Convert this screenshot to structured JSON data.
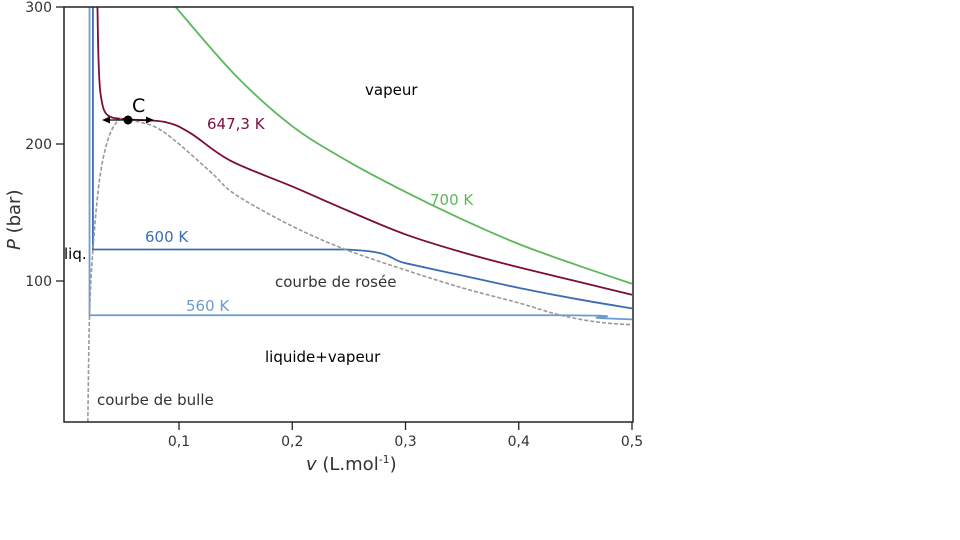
{
  "chart_data": {
    "type": "line",
    "title": "",
    "xlabel": "v (L.mol-1)",
    "xlabel_var": "v",
    "xlabel_unit": " (L.mol",
    "xlabel_exp": "-1",
    "xlabel_close": ")",
    "ylabel_var": "P",
    "ylabel_unit": " (bar)",
    "xlim": [
      -0.002,
      0.5
    ],
    "ylim": [
      -3,
      300
    ],
    "grid": false,
    "x_ticks": [
      {
        "v": 0.1,
        "label": "0,1"
      },
      {
        "v": 0.2,
        "label": "0,2"
      },
      {
        "v": 0.3,
        "label": "0,3"
      },
      {
        "v": 0.4,
        "label": "0,4"
      },
      {
        "v": 0.5,
        "label": "0,5"
      }
    ],
    "y_ticks": [
      {
        "v": 100,
        "label": "100"
      },
      {
        "v": 200,
        "label": "200"
      },
      {
        "v": 300,
        "label": "300"
      }
    ],
    "series": [
      {
        "name": "700 K",
        "color": "#5cb85c",
        "dashed": false,
        "points": [
          [
            0.097,
            300
          ],
          [
            0.15,
            250
          ],
          [
            0.2,
            213
          ],
          [
            0.25,
            187
          ],
          [
            0.3,
            165
          ],
          [
            0.35,
            145
          ],
          [
            0.4,
            127
          ],
          [
            0.45,
            112
          ],
          [
            0.5,
            98
          ]
        ]
      },
      {
        "name": "647,3 K",
        "color": "#7b0d3e",
        "dashed": false,
        "points": [
          [
            0.028,
            300
          ],
          [
            0.029,
            260
          ],
          [
            0.031,
            235
          ],
          [
            0.037,
            221
          ],
          [
            0.055,
            218
          ],
          [
            0.088,
            216
          ],
          [
            0.11,
            208
          ],
          [
            0.145,
            188
          ],
          [
            0.2,
            169
          ],
          [
            0.25,
            151
          ],
          [
            0.3,
            134
          ],
          [
            0.35,
            121
          ],
          [
            0.4,
            110
          ],
          [
            0.45,
            100
          ],
          [
            0.5,
            90
          ]
        ]
      },
      {
        "name": "600 K",
        "color": "#3b6db3",
        "dashed": false,
        "points": [
          [
            0.024,
            300
          ],
          [
            0.024,
            123
          ],
          [
            0.247,
            123
          ],
          [
            0.3,
            113
          ],
          [
            0.35,
            104
          ],
          [
            0.4,
            95
          ],
          [
            0.45,
            87
          ],
          [
            0.5,
            80
          ]
        ]
      },
      {
        "name": "560 K",
        "color": "#6c9bd2",
        "dashed": false,
        "points": [
          [
            0.021,
            300
          ],
          [
            0.021,
            75
          ],
          [
            0.437,
            75
          ],
          [
            0.47,
            73
          ],
          [
            0.5,
            72
          ]
        ]
      },
      {
        "name": "courbe de bulle / courbe de rosée",
        "color": "#999999",
        "dashed": true,
        "points": [
          [
            0.0195,
            -3
          ],
          [
            0.021,
            75
          ],
          [
            0.024,
            123
          ],
          [
            0.03,
            175
          ],
          [
            0.038,
            205
          ],
          [
            0.048,
            218
          ],
          [
            0.06,
            217
          ],
          [
            0.08,
            212
          ],
          [
            0.1,
            200
          ],
          [
            0.13,
            178
          ],
          [
            0.15,
            163
          ],
          [
            0.2,
            140
          ],
          [
            0.247,
            123
          ],
          [
            0.3,
            108
          ],
          [
            0.35,
            95
          ],
          [
            0.4,
            84
          ],
          [
            0.437,
            75
          ],
          [
            0.47,
            70
          ],
          [
            0.5,
            68
          ]
        ]
      }
    ],
    "critical_point": {
      "label": "C",
      "v": 0.055,
      "P": 218
    },
    "annotations": {
      "vapeur": "vapeur",
      "t647": "647,3 K",
      "t700": "700 K",
      "t600": "600 K",
      "liq": "liq.",
      "rosee": "courbe de rosée",
      "t560": "560 K",
      "lv": "liquide+vapeur",
      "bulle": "courbe de bulle"
    }
  }
}
